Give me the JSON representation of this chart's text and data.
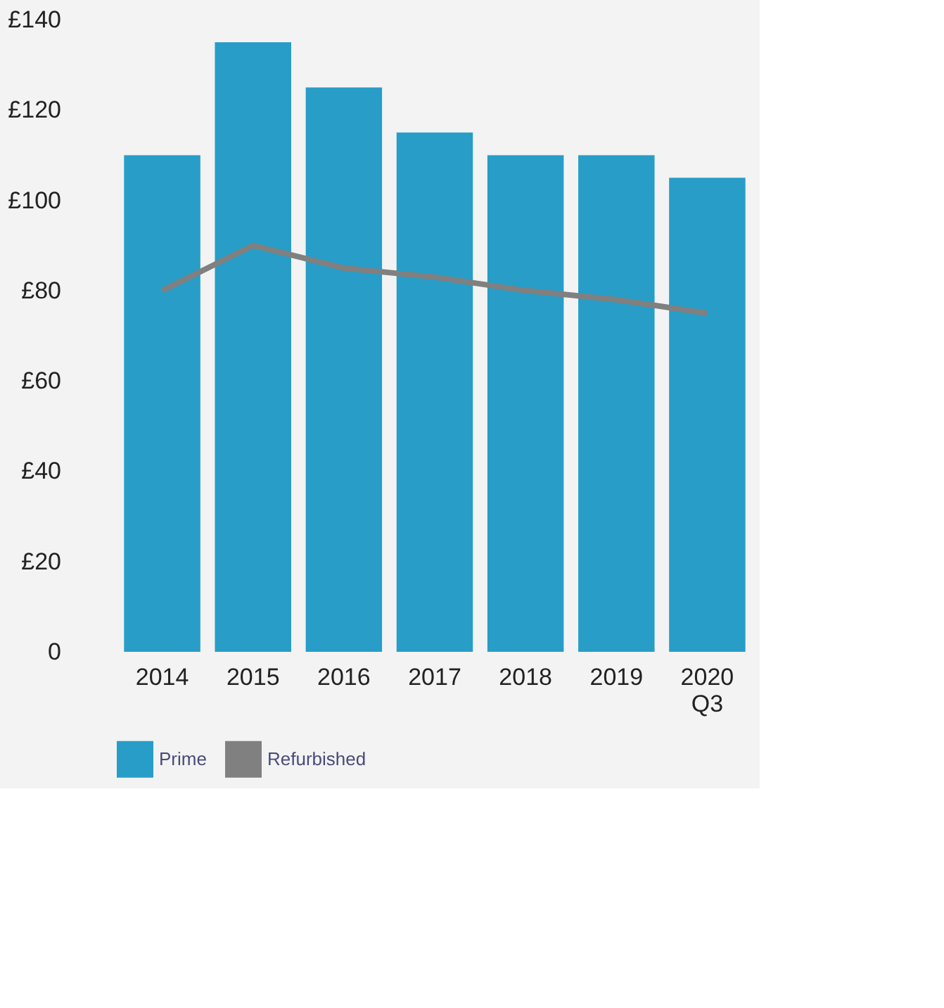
{
  "chart_data": {
    "type": "bar",
    "categories": [
      "2014",
      "2015",
      "2016",
      "2017",
      "2018",
      "2019",
      "2020\nQ3"
    ],
    "series": [
      {
        "name": "Prime",
        "color": "#279dc8",
        "values": [
          110,
          135,
          125,
          115,
          110,
          110,
          105
        ]
      },
      {
        "name": "Refurbished",
        "type": "line",
        "color": "#808080",
        "values": [
          80,
          90,
          85,
          83,
          80,
          78,
          75
        ]
      }
    ],
    "ylim": [
      0,
      140
    ],
    "yticks": [
      0,
      {
        "value": 20,
        "label": "£20"
      },
      {
        "value": 40,
        "label": "£40"
      },
      {
        "value": 60,
        "label": "£60"
      },
      {
        "value": 80,
        "label": "£80"
      },
      {
        "value": 100,
        "label": "£100"
      },
      {
        "value": 120,
        "label": "£120"
      },
      {
        "value": 140,
        "label": "£140"
      }
    ],
    "grid": false,
    "legend": "bottom",
    "marker": "none",
    "line_style": "solid"
  }
}
